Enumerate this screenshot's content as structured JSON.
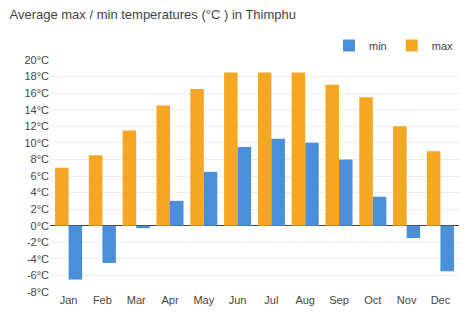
{
  "chart_data": {
    "type": "bar",
    "title": "Average max / min temperatures (°C ) in Thimphu",
    "categories": [
      "Jan",
      "Feb",
      "Mar",
      "Apr",
      "May",
      "Jun",
      "Jul",
      "Aug",
      "Sep",
      "Oct",
      "Nov",
      "Dec"
    ],
    "series": [
      {
        "name": "max",
        "color": "#f5a623",
        "values": [
          7,
          8.5,
          11.5,
          14.5,
          16.5,
          18.5,
          18.5,
          18.5,
          17,
          15.5,
          12,
          9
        ]
      },
      {
        "name": "min",
        "color": "#4a90d9",
        "values": [
          -6.5,
          -4.5,
          -0.3,
          3,
          6.5,
          9.5,
          10.5,
          10,
          8,
          3.5,
          -1.5,
          -5.5
        ]
      }
    ],
    "ylim": [
      -8,
      20
    ],
    "yticks": [
      {
        "value": -8,
        "label": "-8°C"
      },
      {
        "value": -6,
        "label": "-6°C"
      },
      {
        "value": -4,
        "label": "-4°C"
      },
      {
        "value": -2,
        "label": "-2°C"
      },
      {
        "value": 0,
        "label": "0°C"
      },
      {
        "value": 2,
        "label": "2°C"
      },
      {
        "value": 4,
        "label": "4°C"
      },
      {
        "value": 6,
        "label": "6°C"
      },
      {
        "value": 8,
        "label": "8°C"
      },
      {
        "value": 10,
        "label": "10°C"
      },
      {
        "value": 12,
        "label": "12°C"
      },
      {
        "value": 14,
        "label": "14°C"
      },
      {
        "value": 16,
        "label": "16°C"
      },
      {
        "value": 18,
        "label": "18°C"
      },
      {
        "value": 20,
        "label": "20°C"
      }
    ],
    "grid": true,
    "legend": "upper right"
  }
}
